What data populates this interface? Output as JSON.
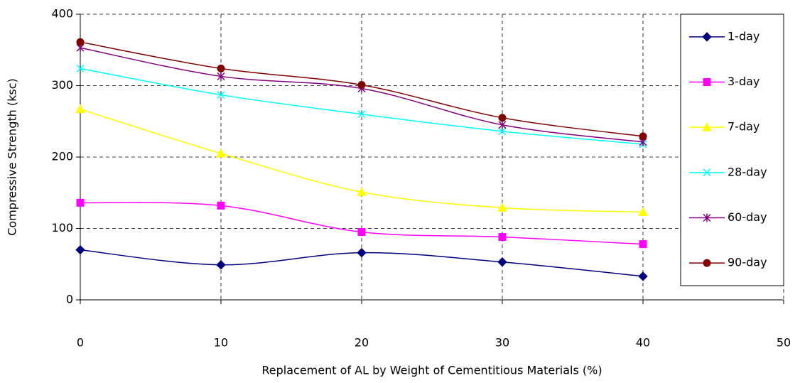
{
  "chart_data": {
    "type": "line",
    "x_label": "Replacement of AL by Weight of Cementitious Materials (%)",
    "y_label": "Compressive Strength (ksc)",
    "x": [
      0,
      10,
      20,
      30,
      40
    ],
    "series": [
      {
        "name": "1-day",
        "color": "#000080",
        "marker": "diamond",
        "values": [
          70,
          49,
          66,
          53,
          33
        ]
      },
      {
        "name": "3-day",
        "color": "#ff00ff",
        "marker": "square",
        "values": [
          136,
          132,
          95,
          88,
          78
        ]
      },
      {
        "name": "7-day",
        "color": "#ffff00",
        "marker": "triangle",
        "values": [
          267,
          205,
          151,
          129,
          123
        ]
      },
      {
        "name": "28-day",
        "color": "#00ffff",
        "marker": "x",
        "values": [
          324,
          287,
          260,
          236,
          218
        ]
      },
      {
        "name": "60-day",
        "color": "#800080",
        "marker": "star",
        "values": [
          353,
          313,
          296,
          245,
          221
        ]
      },
      {
        "name": "90-day",
        "color": "#800000",
        "marker": "circle",
        "values": [
          361,
          324,
          301,
          255,
          229
        ]
      }
    ],
    "xlim": [
      0,
      50
    ],
    "xticks": [
      0,
      10,
      20,
      30,
      40,
      50
    ],
    "ylim": [
      0,
      400
    ],
    "yticks": [
      0,
      100,
      200,
      300,
      400
    ],
    "grid": true,
    "legend": "right"
  }
}
